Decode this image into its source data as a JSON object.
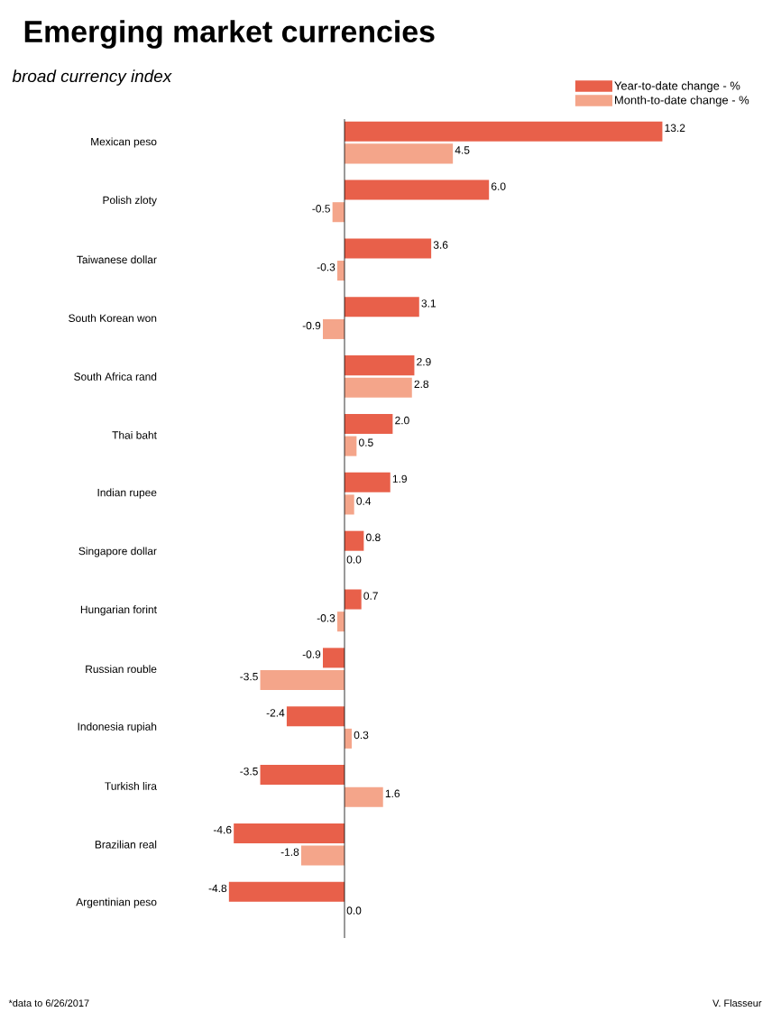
{
  "chart_data": {
    "type": "bar",
    "orientation": "horizontal",
    "title": "Emerging market currencies",
    "subtitle": "broad currency index",
    "categories": [
      "Mexican peso",
      "Polish zloty",
      "Taiwanese dollar",
      "South Korean won",
      "South Africa rand",
      "Thai baht",
      "Indian rupee",
      "Singapore dollar",
      "Hungarian forint",
      "Russian rouble",
      "Indonesia rupiah",
      "Turkish lira",
      "Brazilian real",
      "Argentinian peso"
    ],
    "series": [
      {
        "name": "Year-to-date change - %",
        "color": "#e8604a",
        "values": [
          13.2,
          6.0,
          3.6,
          3.1,
          2.9,
          2.0,
          1.9,
          0.8,
          0.7,
          -0.9,
          -2.4,
          -3.5,
          -4.6,
          -4.8
        ],
        "value_labels": [
          "13.2",
          "6.0",
          "3.6",
          "3.1",
          "2.9",
          "2.0",
          "1.9",
          "0.8",
          "0.7",
          "-0.9",
          "-2.4",
          "-3.5",
          "-4.6",
          "-4.8"
        ]
      },
      {
        "name": "Month-to-date change - %",
        "color": "#f4a58a",
        "values": [
          4.5,
          -0.5,
          -0.3,
          -0.9,
          2.8,
          0.5,
          0.4,
          0.0,
          -0.3,
          -3.5,
          0.3,
          1.6,
          -1.8,
          0.0
        ],
        "value_labels": [
          "4.5",
          "-0.5",
          "-0.3",
          "-0.9",
          "2.8",
          "0.5",
          "0.4",
          "0.0",
          "-0.3",
          "-3.5",
          "0.3",
          "1.6",
          "-1.8",
          "0.0"
        ]
      }
    ],
    "legend": "top right",
    "grid": false,
    "annotations": [
      "*data to 6/26/2017",
      "V. Flasseur"
    ]
  }
}
